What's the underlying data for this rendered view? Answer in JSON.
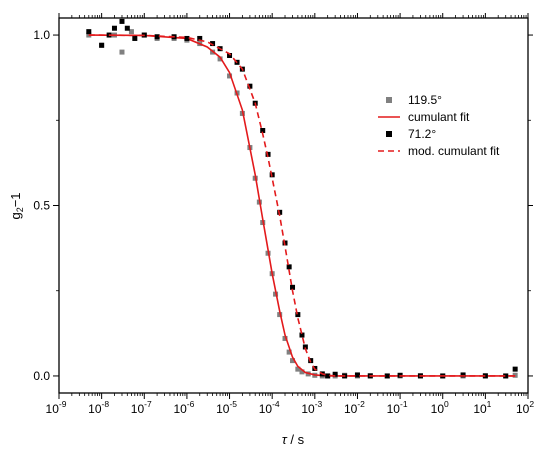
{
  "chart_data": {
    "type": "scatter",
    "title": "",
    "x_scale": "log",
    "xlim": [
      1e-09,
      100
    ],
    "ylim": [
      -0.05,
      1.05
    ],
    "xlabel": {
      "symbol": "τ",
      "unit": " / s"
    },
    "ylabel": {
      "base": "g",
      "sub": "2",
      "rest": "−1"
    },
    "x_ticks": [
      {
        "base": "10",
        "exp": "-9",
        "value": 1e-09
      },
      {
        "base": "10",
        "exp": "-8",
        "value": 1e-08
      },
      {
        "base": "10",
        "exp": "-7",
        "value": 1e-07
      },
      {
        "base": "10",
        "exp": "-6",
        "value": 1e-06
      },
      {
        "base": "10",
        "exp": "-5",
        "value": 1e-05
      },
      {
        "base": "10",
        "exp": "-4",
        "value": 0.0001
      },
      {
        "base": "10",
        "exp": "-3",
        "value": 0.001
      },
      {
        "base": "10",
        "exp": "-2",
        "value": 0.01
      },
      {
        "base": "10",
        "exp": "-1",
        "value": 0.1
      },
      {
        "base": "10",
        "exp": "0",
        "value": 1
      },
      {
        "base": "10",
        "exp": "1",
        "value": 10
      },
      {
        "base": "10",
        "exp": "2",
        "value": 100
      }
    ],
    "y_ticks": [
      {
        "label": "0.0",
        "value": 0.0
      },
      {
        "label": "0.5",
        "value": 0.5
      },
      {
        "label": "1.0",
        "value": 1.0
      }
    ],
    "legend_position": "top-right",
    "grid": false,
    "series": [
      {
        "name": "119.5°",
        "kind": "points",
        "color": "#808080",
        "x": [
          5e-09,
          1e-08,
          2e-08,
          3e-08,
          5e-08,
          1e-07,
          2e-07,
          5e-07,
          1e-06,
          2e-06,
          4e-06,
          6e-06,
          1e-05,
          1.5e-05,
          2e-05,
          3e-05,
          4e-05,
          5e-05,
          6e-05,
          8e-05,
          0.0001,
          0.00012,
          0.00015,
          0.0002,
          0.00025,
          0.0003,
          0.0004,
          0.0005,
          0.0007,
          0.001,
          0.0015,
          0.002,
          0.003,
          0.005,
          0.01,
          0.02,
          0.05,
          0.1,
          0.3,
          1,
          3,
          10,
          30,
          50
        ],
        "y": [
          1.0,
          0.97,
          1.0,
          0.95,
          1.01,
          1.0,
          0.99,
          0.99,
          0.985,
          0.975,
          0.95,
          0.93,
          0.88,
          0.83,
          0.77,
          0.67,
          0.58,
          0.51,
          0.45,
          0.36,
          0.3,
          0.24,
          0.18,
          0.11,
          0.07,
          0.045,
          0.02,
          0.012,
          0.006,
          0.002,
          0.0,
          0.0,
          0.0,
          0.002,
          0.0,
          0.001,
          0.0,
          0.0,
          0.001,
          0.0,
          0.0,
          0.001,
          0.0,
          0.002
        ]
      },
      {
        "name": "cumulant fit",
        "kind": "line",
        "color": "#e31a1c",
        "dash": "solid",
        "x": [
          5e-09,
          1e-07,
          1e-06,
          3e-06,
          6e-06,
          1e-05,
          2e-05,
          4e-05,
          6e-05,
          8e-05,
          0.0001,
          0.00015,
          0.0002,
          0.0003,
          0.0004,
          0.0006,
          0.001,
          0.002,
          0.005,
          0.01,
          0.1,
          1,
          10,
          50
        ],
        "y": [
          1.0,
          0.999,
          0.99,
          0.965,
          0.935,
          0.89,
          0.78,
          0.59,
          0.46,
          0.37,
          0.3,
          0.19,
          0.12,
          0.055,
          0.028,
          0.01,
          0.003,
          0.0,
          0.0,
          0.0,
          0.0,
          0.0,
          0.0,
          0.0
        ]
      },
      {
        "name": "71.2°",
        "kind": "points",
        "color": "#000000",
        "x": [
          5e-09,
          1e-08,
          1.5e-08,
          2e-08,
          3e-08,
          4e-08,
          6e-08,
          1e-07,
          2e-07,
          5e-07,
          1e-06,
          2e-06,
          4e-06,
          6e-06,
          1e-05,
          1.5e-05,
          2e-05,
          3e-05,
          4e-05,
          6e-05,
          8e-05,
          0.0001,
          0.00015,
          0.0002,
          0.00025,
          0.0003,
          0.0004,
          0.0005,
          0.0006,
          0.0008,
          0.001,
          0.0015,
          0.002,
          0.003,
          0.005,
          0.01,
          0.02,
          0.05,
          0.1,
          0.3,
          1,
          3,
          10,
          30,
          50
        ],
        "y": [
          1.01,
          0.97,
          1.0,
          1.02,
          1.04,
          1.02,
          0.99,
          1.0,
          0.995,
          0.995,
          0.99,
          0.99,
          0.975,
          0.96,
          0.94,
          0.92,
          0.9,
          0.85,
          0.8,
          0.72,
          0.65,
          0.59,
          0.48,
          0.39,
          0.32,
          0.26,
          0.18,
          0.12,
          0.085,
          0.045,
          0.022,
          0.006,
          0.0,
          0.005,
          0.0,
          0.003,
          0.0,
          0.0,
          0.002,
          0.0,
          0.0,
          0.003,
          0.0,
          0.0,
          0.02
        ]
      },
      {
        "name": "mod. cumulant fit",
        "kind": "line",
        "color": "#e31a1c",
        "dash": "dashed",
        "x": [
          5e-09,
          1e-07,
          1e-06,
          3e-06,
          1e-05,
          2e-05,
          4e-05,
          6e-05,
          8e-05,
          0.0001,
          0.00015,
          0.0002,
          0.0003,
          0.0004,
          0.0006,
          0.0008,
          0.001,
          0.0015,
          0.002,
          0.003,
          0.01,
          0.1,
          1,
          10,
          50
        ],
        "y": [
          1.0,
          0.999,
          0.993,
          0.98,
          0.945,
          0.9,
          0.8,
          0.71,
          0.64,
          0.58,
          0.47,
          0.38,
          0.25,
          0.17,
          0.08,
          0.04,
          0.02,
          0.006,
          0.002,
          0.0,
          0.0,
          0.0,
          0.0,
          0.0,
          0.0
        ]
      }
    ]
  }
}
